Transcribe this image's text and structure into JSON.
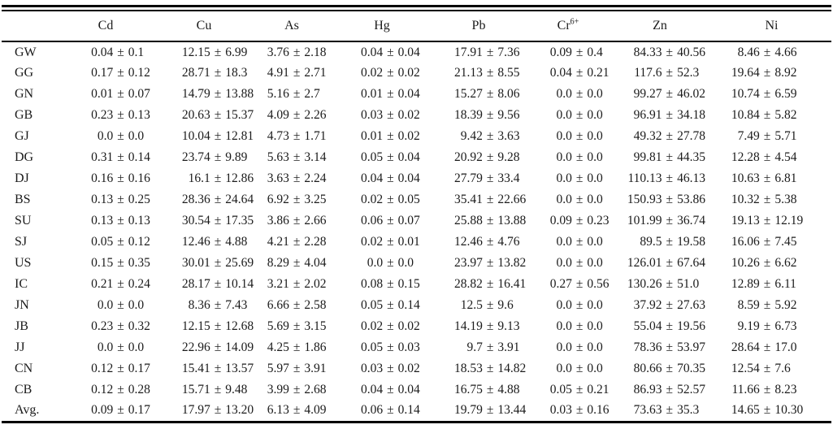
{
  "colors": {
    "background": "#ffffff",
    "text": "#1b1b1b",
    "rule": "#000000"
  },
  "table": {
    "plus_minus": "±",
    "corner_label": "",
    "columns": [
      {
        "label": "Cd",
        "sup": ""
      },
      {
        "label": "Cu",
        "sup": ""
      },
      {
        "label": "As",
        "sup": ""
      },
      {
        "label": "Hg",
        "sup": ""
      },
      {
        "label": "Pb",
        "sup": ""
      },
      {
        "label": "Cr",
        "sup": "6+"
      },
      {
        "label": "Zn",
        "sup": ""
      },
      {
        "label": "Ni",
        "sup": ""
      }
    ],
    "rows": [
      {
        "label": "GW",
        "values": [
          [
            "0.04",
            "0.1"
          ],
          [
            "12.15",
            "6.99"
          ],
          [
            "3.76",
            "2.18"
          ],
          [
            "0.04",
            "0.04"
          ],
          [
            "17.91",
            "7.36"
          ],
          [
            "0.09",
            "0.4"
          ],
          [
            "84.33",
            "40.56"
          ],
          [
            "8.46",
            "4.66"
          ]
        ]
      },
      {
        "label": "GG",
        "values": [
          [
            "0.17",
            "0.12"
          ],
          [
            "28.71",
            "18.3"
          ],
          [
            "4.91",
            "2.71"
          ],
          [
            "0.02",
            "0.02"
          ],
          [
            "21.13",
            "8.55"
          ],
          [
            "0.04",
            "0.21"
          ],
          [
            "117.6",
            "52.3"
          ],
          [
            "19.64",
            "8.92"
          ]
        ]
      },
      {
        "label": "GN",
        "values": [
          [
            "0.01",
            "0.07"
          ],
          [
            "14.79",
            "13.88"
          ],
          [
            "5.16",
            "2.7"
          ],
          [
            "0.01",
            "0.04"
          ],
          [
            "15.27",
            "8.06"
          ],
          [
            "0.0",
            "0.0"
          ],
          [
            "99.27",
            "46.02"
          ],
          [
            "10.74",
            "6.59"
          ]
        ]
      },
      {
        "label": "GB",
        "values": [
          [
            "0.23",
            "0.13"
          ],
          [
            "20.63",
            "15.37"
          ],
          [
            "4.09",
            "2.26"
          ],
          [
            "0.03",
            "0.02"
          ],
          [
            "18.39",
            "9.56"
          ],
          [
            "0.0",
            "0.0"
          ],
          [
            "96.91",
            "34.18"
          ],
          [
            "10.84",
            "5.82"
          ]
        ]
      },
      {
        "label": "GJ",
        "values": [
          [
            "0.0",
            "0.0"
          ],
          [
            "10.04",
            "12.81"
          ],
          [
            "4.73",
            "1.71"
          ],
          [
            "0.01",
            "0.02"
          ],
          [
            "9.42",
            "3.63"
          ],
          [
            "0.0",
            "0.0"
          ],
          [
            "49.32",
            "27.78"
          ],
          [
            "7.49",
            "5.71"
          ]
        ]
      },
      {
        "label": "DG",
        "values": [
          [
            "0.31",
            "0.14"
          ],
          [
            "23.74",
            "9.89"
          ],
          [
            "5.63",
            "3.14"
          ],
          [
            "0.05",
            "0.04"
          ],
          [
            "20.92",
            "9.28"
          ],
          [
            "0.0",
            "0.0"
          ],
          [
            "99.81",
            "44.35"
          ],
          [
            "12.28",
            "4.54"
          ]
        ]
      },
      {
        "label": "DJ",
        "values": [
          [
            "0.16",
            "0.16"
          ],
          [
            "16.1",
            "12.86"
          ],
          [
            "3.63",
            "2.24"
          ],
          [
            "0.04",
            "0.04"
          ],
          [
            "27.79",
            "33.4"
          ],
          [
            "0.0",
            "0.0"
          ],
          [
            "110.13",
            "46.13"
          ],
          [
            "10.63",
            "6.81"
          ]
        ]
      },
      {
        "label": "BS",
        "values": [
          [
            "0.13",
            "0.25"
          ],
          [
            "28.36",
            "24.64"
          ],
          [
            "6.92",
            "3.25"
          ],
          [
            "0.02",
            "0.05"
          ],
          [
            "35.41",
            "22.66"
          ],
          [
            "0.0",
            "0.0"
          ],
          [
            "150.93",
            "53.86"
          ],
          [
            "10.32",
            "5.38"
          ]
        ]
      },
      {
        "label": "SU",
        "values": [
          [
            "0.13",
            "0.13"
          ],
          [
            "30.54",
            "17.35"
          ],
          [
            "3.86",
            "2.66"
          ],
          [
            "0.06",
            "0.07"
          ],
          [
            "25.88",
            "13.88"
          ],
          [
            "0.09",
            "0.23"
          ],
          [
            "101.99",
            "36.74"
          ],
          [
            "19.13",
            "12.19"
          ]
        ]
      },
      {
        "label": "SJ",
        "values": [
          [
            "0.05",
            "0.12"
          ],
          [
            "12.46",
            "4.88"
          ],
          [
            "4.21",
            "2.28"
          ],
          [
            "0.02",
            "0.01"
          ],
          [
            "12.46",
            "4.76"
          ],
          [
            "0.0",
            "0.0"
          ],
          [
            "89.5",
            "19.58"
          ],
          [
            "16.06",
            "7.45"
          ]
        ]
      },
      {
        "label": "US",
        "values": [
          [
            "0.15",
            "0.35"
          ],
          [
            "30.01",
            "25.69"
          ],
          [
            "8.29",
            "4.04"
          ],
          [
            "0.0",
            "0.0"
          ],
          [
            "23.97",
            "13.82"
          ],
          [
            "0.0",
            "0.0"
          ],
          [
            "126.01",
            "67.64"
          ],
          [
            "10.26",
            "6.62"
          ]
        ]
      },
      {
        "label": "IC",
        "values": [
          [
            "0.21",
            "0.24"
          ],
          [
            "28.17",
            "10.14"
          ],
          [
            "3.21",
            "2.02"
          ],
          [
            "0.08",
            "0.15"
          ],
          [
            "28.82",
            "16.41"
          ],
          [
            "0.27",
            "0.56"
          ],
          [
            "130.26",
            "51.0"
          ],
          [
            "12.89",
            "6.11"
          ]
        ]
      },
      {
        "label": "JN",
        "values": [
          [
            "0.0",
            "0.0"
          ],
          [
            "8.36",
            "7.43"
          ],
          [
            "6.66",
            "2.58"
          ],
          [
            "0.05",
            "0.14"
          ],
          [
            "12.5",
            "9.6"
          ],
          [
            "0.0",
            "0.0"
          ],
          [
            "37.92",
            "27.63"
          ],
          [
            "8.59",
            "5.92"
          ]
        ]
      },
      {
        "label": "JB",
        "values": [
          [
            "0.23",
            "0.32"
          ],
          [
            "12.15",
            "12.68"
          ],
          [
            "5.69",
            "3.15"
          ],
          [
            "0.02",
            "0.02"
          ],
          [
            "14.19",
            "9.13"
          ],
          [
            "0.0",
            "0.0"
          ],
          [
            "55.04",
            "19.56"
          ],
          [
            "9.19",
            "6.73"
          ]
        ]
      },
      {
        "label": "JJ",
        "values": [
          [
            "0.0",
            "0.0"
          ],
          [
            "22.96",
            "14.09"
          ],
          [
            "4.25",
            "1.86"
          ],
          [
            "0.05",
            "0.03"
          ],
          [
            "9.7",
            "3.91"
          ],
          [
            "0.0",
            "0.0"
          ],
          [
            "78.36",
            "53.97"
          ],
          [
            "28.64",
            "17.0"
          ]
        ]
      },
      {
        "label": "CN",
        "values": [
          [
            "0.12",
            "0.17"
          ],
          [
            "15.41",
            "13.57"
          ],
          [
            "5.97",
            "3.91"
          ],
          [
            "0.03",
            "0.02"
          ],
          [
            "18.53",
            "14.82"
          ],
          [
            "0.0",
            "0.0"
          ],
          [
            "80.66",
            "70.35"
          ],
          [
            "12.54",
            "7.6"
          ]
        ]
      },
      {
        "label": "CB",
        "values": [
          [
            "0.12",
            "0.28"
          ],
          [
            "15.71",
            "9.48"
          ],
          [
            "3.99",
            "2.68"
          ],
          [
            "0.04",
            "0.04"
          ],
          [
            "16.75",
            "4.88"
          ],
          [
            "0.05",
            "0.21"
          ],
          [
            "86.93",
            "52.57"
          ],
          [
            "11.66",
            "8.23"
          ]
        ]
      },
      {
        "label": "Avg.",
        "values": [
          [
            "0.09",
            "0.17"
          ],
          [
            "17.97",
            "13.20"
          ],
          [
            "6.13",
            "4.09"
          ],
          [
            "0.06",
            "0.14"
          ],
          [
            "19.79",
            "13.44"
          ],
          [
            "0.03",
            "0.16"
          ],
          [
            "73.63",
            "35.3"
          ],
          [
            "14.65",
            "10.30"
          ]
        ]
      }
    ]
  }
}
